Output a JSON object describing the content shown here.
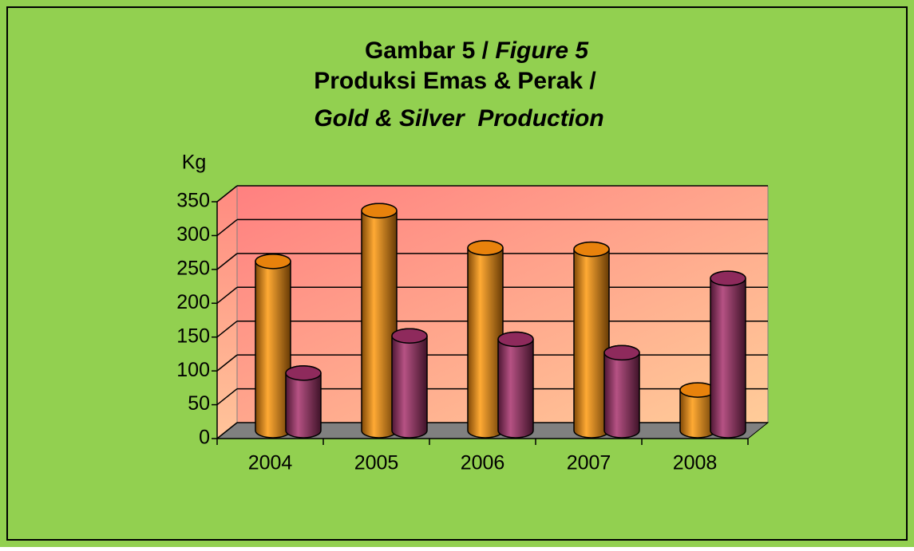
{
  "chart_data": {
    "type": "bar3d",
    "title": [
      "Gambar 5 /",
      "Figure 5",
      "Produksi Emas & Perak /",
      "Gold & Silver  Production"
    ],
    "y_label": "Kg",
    "categories": [
      "2004",
      "2005",
      "2006",
      "2007",
      "2008"
    ],
    "series": [
      {
        "color": "#e8820c",
        "values": [
          250,
          325,
          270,
          268,
          60
        ]
      },
      {
        "color": "#8e2a5c",
        "values": [
          85,
          140,
          135,
          115,
          225
        ]
      }
    ],
    "ylim": [
      0,
      350
    ],
    "yticks": [
      0,
      50,
      100,
      150,
      200,
      250,
      300,
      350
    ],
    "grid": true
  }
}
